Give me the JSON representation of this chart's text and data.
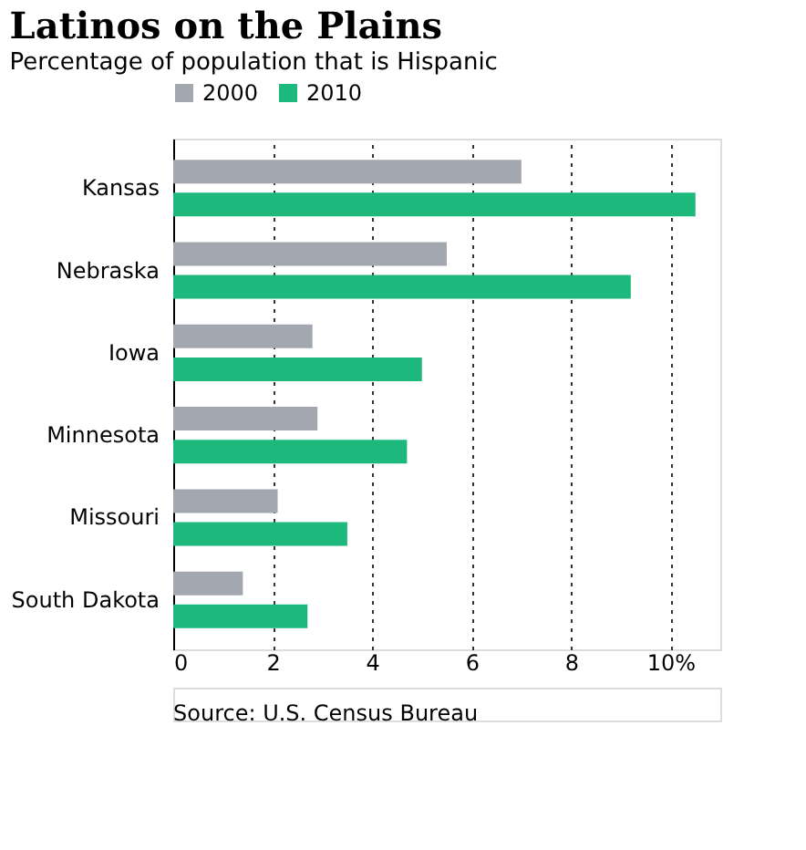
{
  "chart_data": {
    "type": "bar",
    "orientation": "horizontal",
    "title": "Latinos on the Plains",
    "subtitle": "Percentage of population that is Hispanic",
    "categories": [
      "Kansas",
      "Nebraska",
      "Iowa",
      "Minnesota",
      "Missouri",
      "South Dakota"
    ],
    "series": [
      {
        "name": "2000",
        "color": "#a3a8b0",
        "values": [
          7.0,
          5.5,
          2.8,
          2.9,
          2.1,
          1.4
        ]
      },
      {
        "name": "2010",
        "color": "#1db87c",
        "values": [
          10.5,
          9.2,
          5.0,
          4.7,
          3.5,
          2.7
        ]
      }
    ],
    "xlim": [
      0,
      11
    ],
    "xticks": [
      0,
      2,
      4,
      6,
      8,
      {
        "value": 10,
        "label": "10%"
      }
    ],
    "grid": "x",
    "legend": "top",
    "annotations": [
      "Source: U.S. Census Bureau"
    ]
  }
}
